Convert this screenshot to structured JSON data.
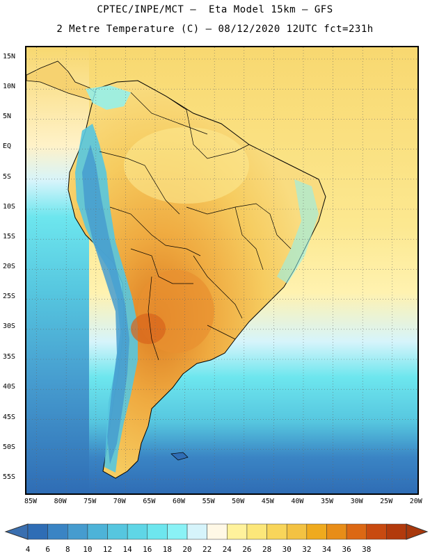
{
  "header": {
    "line1": "CPTEC/INPE/MCT –  Eta Model 15km – GFS",
    "line2": "2 Metre Temperature (C) – 08/12/2020 12UTC fct=231h"
  },
  "axes": {
    "lat_labels": [
      "15N",
      "10N",
      "5N",
      "EQ",
      "5S",
      "10S",
      "15S",
      "20S",
      "25S",
      "30S",
      "35S",
      "40S",
      "45S",
      "50S",
      "55S"
    ],
    "lon_labels": [
      "85W",
      "80W",
      "75W",
      "70W",
      "65W",
      "60W",
      "55W",
      "50W",
      "45W",
      "40W",
      "35W",
      "30W",
      "25W",
      "20W"
    ]
  },
  "colorbar": {
    "labels": [
      "4",
      "6",
      "8",
      "10",
      "12",
      "14",
      "16",
      "18",
      "20",
      "22",
      "24",
      "26",
      "28",
      "30",
      "32",
      "34",
      "36",
      "38"
    ],
    "colors": [
      "#2f6db5",
      "#3a84c4",
      "#469ccf",
      "#4db3d8",
      "#56c6df",
      "#5fd6e6",
      "#6de6ee",
      "#8af2f6",
      "#d6f4fb",
      "#fff8e6",
      "#fff29c",
      "#fce77a",
      "#f8d55a",
      "#f3c242",
      "#efaa1e",
      "#e88d18",
      "#dc6814",
      "#c84a10",
      "#b23a0c"
    ]
  }
}
